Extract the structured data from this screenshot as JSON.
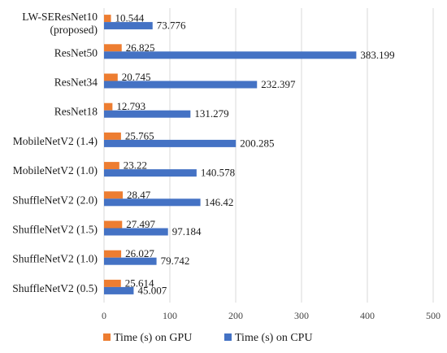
{
  "chart_data": {
    "type": "bar",
    "orientation": "horizontal",
    "categories": [
      "LW-SEResNet10\n(proposed)",
      "ResNet50",
      "ResNet34",
      "ResNet18",
      "MobileNetV2 (1.4)",
      "MobileNetV2 (1.0)",
      "ShuffleNetV2 (2.0)",
      "ShuffleNetV2 (1.5)",
      "ShuffleNetV2 (1.0)",
      "ShuffleNetV2 (0.5)"
    ],
    "series": [
      {
        "name": "Time (s) on GPU",
        "color": "#ED7D31",
        "values": [
          10.544,
          26.825,
          20.745,
          12.793,
          25.765,
          23.22,
          28.47,
          27.497,
          26.027,
          25.614
        ],
        "labels": [
          "10.544",
          "26.825",
          "20.745",
          "12.793",
          "25.765",
          "23.22",
          "28.47",
          "27.497",
          "26.027",
          "25.614"
        ]
      },
      {
        "name": "Time (s) on CPU",
        "color": "#4472C4",
        "values": [
          73.776,
          383.199,
          232.397,
          131.279,
          200.285,
          140.578,
          146.42,
          97.184,
          79.742,
          45.007
        ],
        "labels": [
          "73.776",
          "383.199",
          "232.397",
          "131.279",
          "200.285",
          "140.578",
          "146.42",
          "97.184",
          "79.742",
          "45.007"
        ]
      }
    ],
    "xlim": [
      0,
      500
    ],
    "xticks": [
      0,
      100,
      200,
      300,
      400,
      500
    ],
    "xtick_labels": [
      "0",
      "100",
      "200",
      "300",
      "400",
      "500"
    ],
    "title": "",
    "xlabel": "",
    "ylabel": "",
    "grid": true,
    "legend_position": "bottom"
  }
}
